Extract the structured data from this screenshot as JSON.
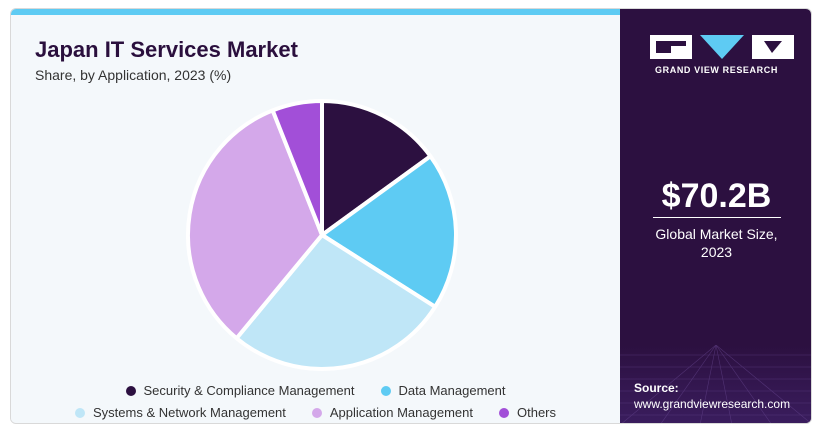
{
  "header": {
    "title": "Japan IT Services Market",
    "subtitle": "Share, by Application, 2023 (%)"
  },
  "sidebar": {
    "brand": "GRAND VIEW RESEARCH",
    "market_size": "$70.2B",
    "market_label_line1": "Global Market Size,",
    "market_label_line2": "2023",
    "source_title": "Source:",
    "source_url": "www.grandviewresearch.com"
  },
  "colors": {
    "accent_bar": "#5ecbf3",
    "sidebar_bg": "#2c1040",
    "title": "#2a0f3d"
  },
  "chart_data": {
    "type": "pie",
    "title": "Japan IT Services Market",
    "subtitle": "Share, by Application, 2023 (%)",
    "legend_position": "bottom",
    "slices": [
      {
        "name": "Security & Compliance Management",
        "value": 15,
        "color": "#2c1040"
      },
      {
        "name": "Data Management",
        "value": 19,
        "color": "#5ecbf3"
      },
      {
        "name": "Systems & Network Management",
        "value": 27,
        "color": "#bfe6f7"
      },
      {
        "name": "Application Management",
        "value": 33,
        "color": "#d4a8ea"
      },
      {
        "name": "Others",
        "value": 6,
        "color": "#a24fd8"
      }
    ]
  }
}
